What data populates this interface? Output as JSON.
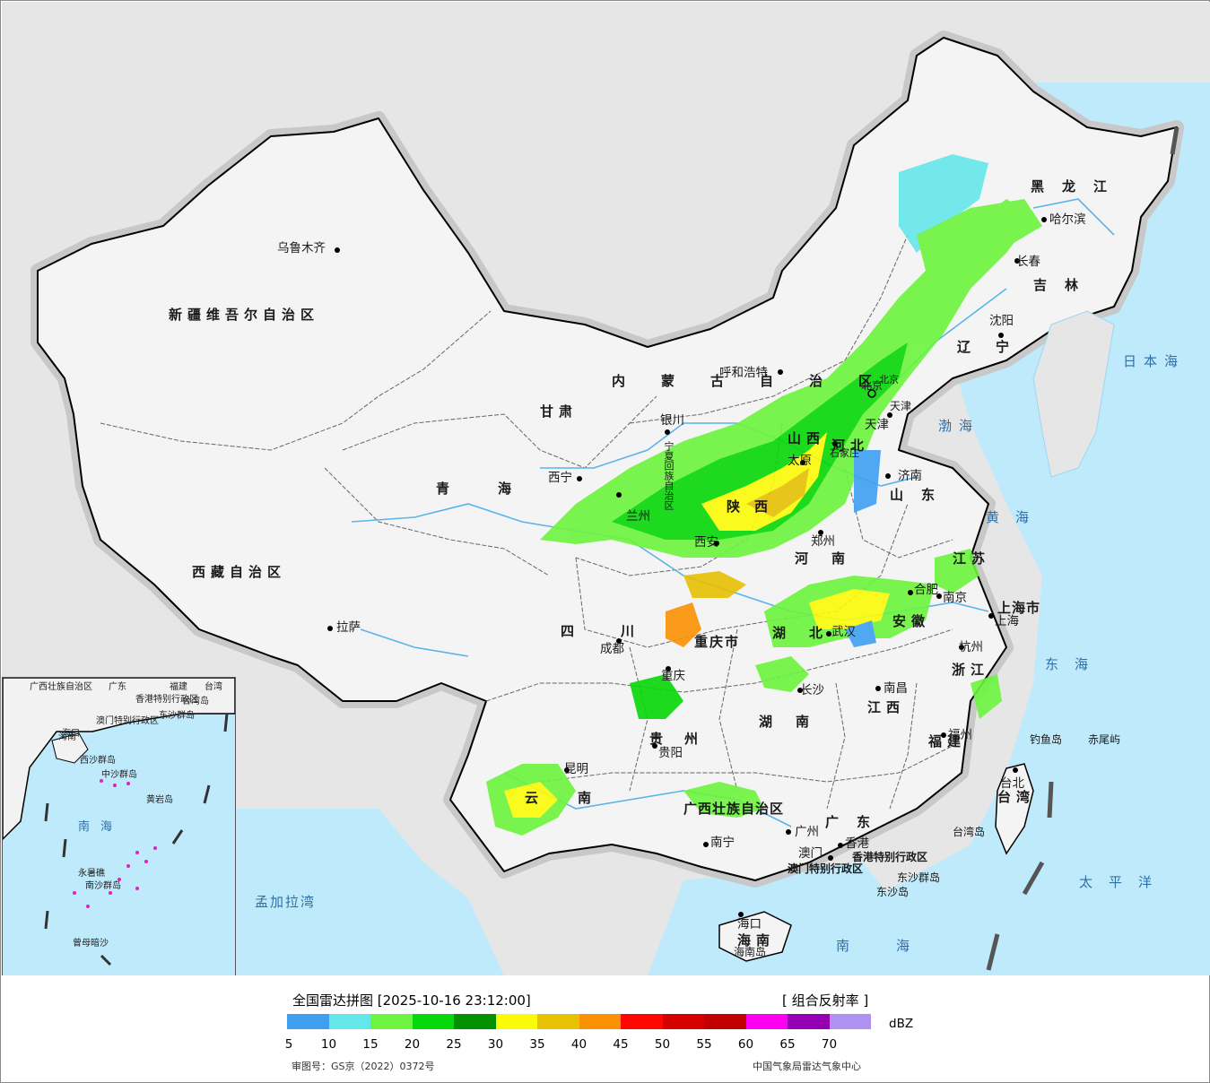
{
  "map": {
    "provinces": [
      "新疆维吾尔自治区",
      "西藏自治区",
      "青海",
      "甘肃",
      "内蒙古自治区",
      "黑龙江",
      "吉林",
      "辽宁",
      "河北",
      "山西",
      "陕西",
      "四川",
      "重庆市",
      "云南",
      "贵州",
      "广西壮族自治区",
      "广东",
      "湖南",
      "湖北",
      "河南",
      "山东",
      "江苏",
      "安徽",
      "浙江",
      "江西",
      "福建",
      "台湾",
      "海南",
      "上海市",
      "北京",
      "天津",
      "宁夏回族自治区",
      "香港特别行政区",
      "澳门特别行政区"
    ],
    "cities": [
      "乌鲁木齐",
      "拉萨",
      "西宁",
      "呼和浩特",
      "银川",
      "兰州",
      "西安",
      "成都",
      "重庆",
      "贵阳",
      "昆明",
      "南宁",
      "广州",
      "香港",
      "澳门",
      "海口",
      "长沙",
      "武汉",
      "南昌",
      "福州",
      "台北",
      "杭州",
      "上海",
      "南京",
      "合肥",
      "郑州",
      "济南",
      "石家庄",
      "太原",
      "天津",
      "北京",
      "沈阳",
      "长春",
      "哈尔滨"
    ],
    "seas": [
      "日本海",
      "渤海",
      "黄海",
      "东海",
      "太平洋",
      "南海",
      "孟加拉湾"
    ],
    "islands": [
      "钓鱼岛",
      "赤尾屿",
      "台湾岛",
      "东沙群岛",
      "海南岛",
      "东沙岛"
    ],
    "inset_labels": [
      "广西壮族自治区",
      "广东",
      "福建",
      "台湾",
      "海南",
      "香港特别行政区",
      "澳门特别行政区",
      "东沙群岛",
      "西沙群岛",
      "中沙群岛",
      "黄岩岛",
      "南海",
      "南沙群岛",
      "曾母暗沙",
      "永暑礁",
      "海口",
      "台湾岛"
    ],
    "colors": {
      "land": "#f2f2f2",
      "outside": "#e6e6e6",
      "sea": "#bfeafb",
      "river": "#5ab4e8",
      "border": "#000000"
    }
  },
  "legend": {
    "title": "全国雷达拼图 [2025-10-16 23:12:00]",
    "product": "[ 组合反射率 ]",
    "unit": "dBZ",
    "ticks": [
      "5",
      "10",
      "15",
      "20",
      "25",
      "30",
      "35",
      "40",
      "45",
      "50",
      "55",
      "60",
      "65",
      "70"
    ],
    "colors": [
      "#3fa0f2",
      "#64e7eb",
      "#6cf43e",
      "#06d809",
      "#019101",
      "#fbfb09",
      "#e7c103",
      "#fb9104",
      "#fe0700",
      "#d60000",
      "#c00100",
      "#fe00f1",
      "#9500b3",
      "#ae91f0"
    ],
    "approval": "审图号：GS京（2022）0372号",
    "org": "中国气象局雷达气象中心"
  }
}
